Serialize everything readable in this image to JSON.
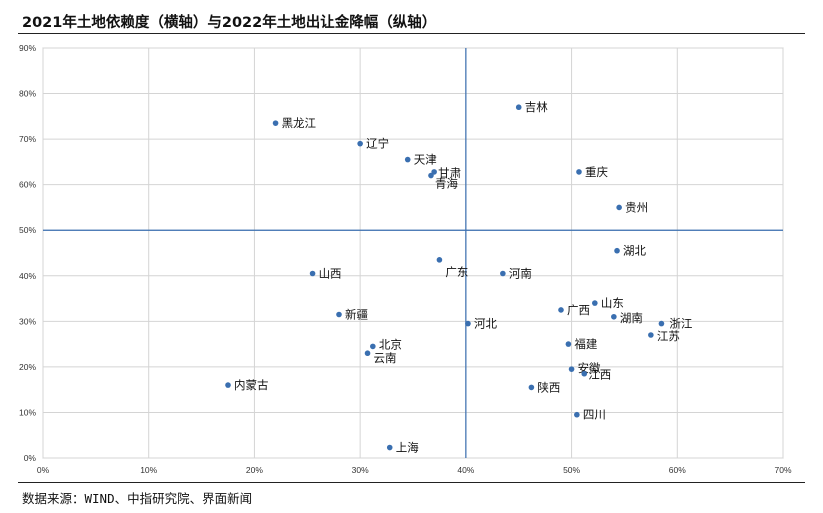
{
  "title": "2021年土地依赖度（横轴）与2022年土地出让金降幅（纵轴）",
  "source": "数据来源：WIND、中指研究院、界面新闻",
  "chart_data": {
    "type": "scatter",
    "title": "2021年土地依赖度（横轴）与2022年土地出让金降幅（纵轴）",
    "xlabel": "",
    "ylabel": "",
    "xlim": [
      0,
      70
    ],
    "ylim": [
      0,
      90
    ],
    "xticks": [
      0,
      10,
      20,
      30,
      40,
      50,
      60,
      70
    ],
    "yticks": [
      0,
      10,
      20,
      30,
      40,
      50,
      60,
      70,
      80,
      90
    ],
    "x_tick_labels": [
      "0%",
      "10%",
      "20%",
      "30%",
      "40%",
      "50%",
      "60%",
      "70%"
    ],
    "y_tick_labels": [
      "0%",
      "10%",
      "20%",
      "30%",
      "40%",
      "50%",
      "60%",
      "70%",
      "80%",
      "90%"
    ],
    "grid": true,
    "reference_lines": {
      "x": 40,
      "y": 50
    },
    "points": [
      {
        "label": "吉林",
        "x": 45.0,
        "y": 77.0
      },
      {
        "label": "黑龙江",
        "x": 22.0,
        "y": 73.5
      },
      {
        "label": "辽宁",
        "x": 30.0,
        "y": 69.0
      },
      {
        "label": "天津",
        "x": 34.5,
        "y": 65.5
      },
      {
        "label": "甘肃",
        "x": 37.0,
        "y": 62.8
      },
      {
        "label": "青海",
        "x": 36.7,
        "y": 62.0
      },
      {
        "label": "重庆",
        "x": 50.7,
        "y": 62.8
      },
      {
        "label": "贵州",
        "x": 54.5,
        "y": 55.0
      },
      {
        "label": "湖北",
        "x": 54.3,
        "y": 45.5
      },
      {
        "label": "广东",
        "x": 37.5,
        "y": 43.5
      },
      {
        "label": "河南",
        "x": 43.5,
        "y": 40.5
      },
      {
        "label": "山西",
        "x": 25.5,
        "y": 40.5
      },
      {
        "label": "山东",
        "x": 52.2,
        "y": 34.0
      },
      {
        "label": "广西",
        "x": 49.0,
        "y": 32.5
      },
      {
        "label": "湖南",
        "x": 54.0,
        "y": 31.0
      },
      {
        "label": "新疆",
        "x": 28.0,
        "y": 31.5
      },
      {
        "label": "河北",
        "x": 40.2,
        "y": 29.5
      },
      {
        "label": "浙江",
        "x": 58.5,
        "y": 29.5
      },
      {
        "label": "江苏",
        "x": 57.5,
        "y": 27.0
      },
      {
        "label": "福建",
        "x": 49.7,
        "y": 25.0
      },
      {
        "label": "北京",
        "x": 31.2,
        "y": 24.5
      },
      {
        "label": "云南",
        "x": 30.7,
        "y": 23.0
      },
      {
        "label": "安徽",
        "x": 50.0,
        "y": 19.5
      },
      {
        "label": "江西",
        "x": 51.2,
        "y": 18.5
      },
      {
        "label": "内蒙古",
        "x": 17.5,
        "y": 16.0
      },
      {
        "label": "陕西",
        "x": 46.2,
        "y": 15.5
      },
      {
        "label": "四川",
        "x": 50.5,
        "y": 9.5
      },
      {
        "label": "上海",
        "x": 32.8,
        "y": 2.3
      }
    ],
    "marker_color": "#3a6fb0",
    "reference_line_color": "#3a6fb0",
    "grid_color": "#d4d4d4"
  }
}
